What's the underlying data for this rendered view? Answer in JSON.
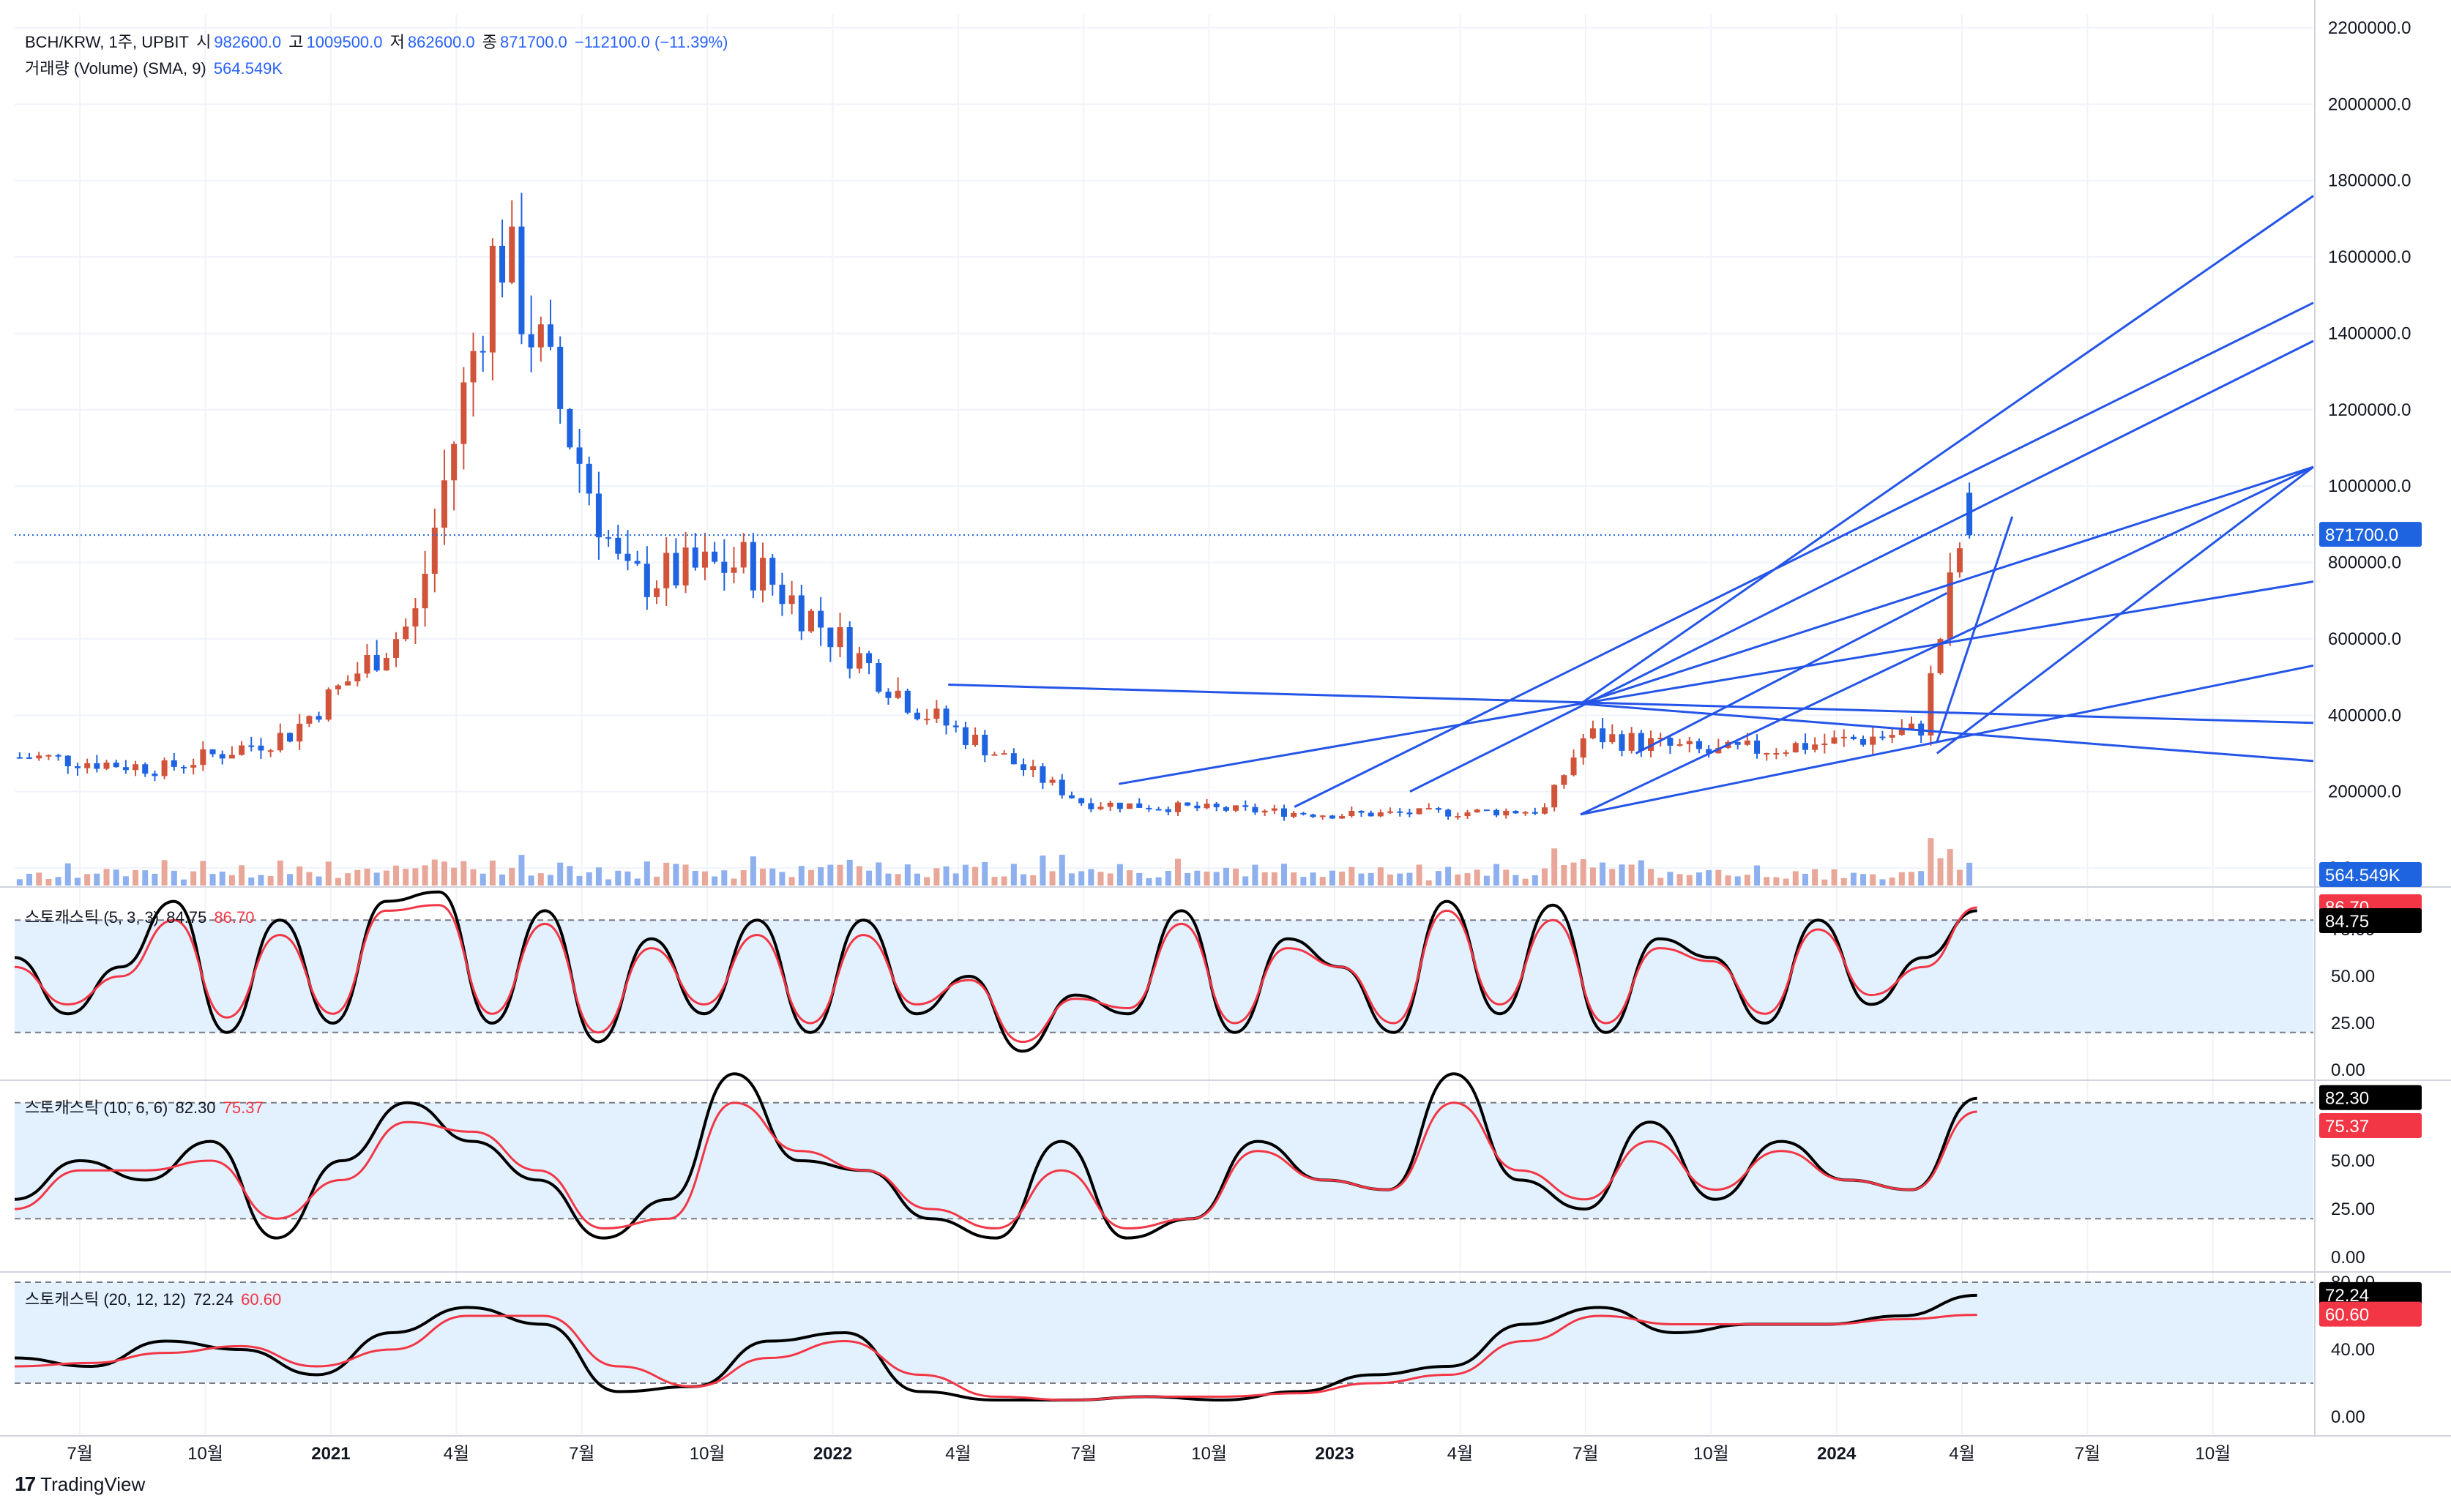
{
  "header": {
    "symbol": "BCH/KRW, 1주, UPBIT",
    "open_label": "시",
    "open": "982600.0",
    "high_label": "고",
    "high": "1009500.0",
    "low_label": "저",
    "low": "862600.0",
    "close_label": "종",
    "close": "871700.0",
    "change": "−112100.0 (−11.39%)",
    "volume_label": "거래량 (Volume) (SMA, 9)",
    "volume_value": "564.549K"
  },
  "panes": {
    "stoch1": {
      "label": "스토캐스틱 (5, 3, 3)",
      "k": "84.75",
      "d": "86.70"
    },
    "stoch2": {
      "label": "스토캐스틱 (10, 6, 6)",
      "k": "82.30",
      "d": "75.37"
    },
    "stoch3": {
      "label": "스토캐스틱 (20, 12, 12)",
      "k": "72.24",
      "d": "60.60"
    }
  },
  "price_axis": {
    "ticks": [
      "2200000.0",
      "2000000.0",
      "1800000.0",
      "1600000.0",
      "1400000.0",
      "1200000.0",
      "1000000.0",
      "800000.0",
      "600000.0",
      "400000.0",
      "200000.0",
      "0.0"
    ],
    "last_price_tag": "871700.0",
    "volume_tag": "564.549K"
  },
  "stoch_axis": {
    "pane1": [
      "75.00",
      "50.00",
      "25.00",
      "0.00"
    ],
    "pane2": [
      "50.00",
      "25.00",
      "0.00"
    ],
    "pane3": [
      "80.00",
      "40.00",
      "0.00"
    ]
  },
  "time_axis": [
    "7월",
    "10월",
    "2021",
    "4월",
    "7월",
    "10월",
    "2022",
    "4월",
    "7월",
    "10월",
    "2023",
    "4월",
    "7월",
    "10월",
    "2024",
    "4월",
    "7월",
    "10월"
  ],
  "brand": "TradingView",
  "colors": {
    "up": "#d0533a",
    "down": "#1e63e0",
    "trend": "#2455e8",
    "k_line": "#000000",
    "d_line": "#f23645",
    "band": "#e3f0fd"
  },
  "chart_data": [
    {
      "type": "candlestick",
      "title": "BCH/KRW, 1주, UPBIT",
      "x_range": [
        "2020-05",
        "2024-10"
      ],
      "ylim": [
        0,
        2200000
      ],
      "x": [
        "2020-06",
        "2020-09",
        "2020-12",
        "2021-03",
        "2021-05",
        "2021-08",
        "2021-11",
        "2022-03",
        "2022-07",
        "2022-11",
        "2023-01",
        "2023-06",
        "2023-07",
        "2023-10",
        "2024-01",
        "2024-03",
        "2024-04"
      ],
      "close": [
        290000,
        260000,
        350000,
        650000,
        1650000,
        750000,
        800000,
        420000,
        170000,
        150000,
        140000,
        150000,
        350000,
        300000,
        330000,
        360000,
        871700
      ],
      "last": {
        "open": 982600,
        "high": 1009500,
        "low": 862600,
        "close": 871700
      }
    },
    {
      "type": "bar",
      "title": "거래량 (Volume) (SMA, 9)",
      "note": "volume bars, relative",
      "last_sma": "564.549K"
    },
    {
      "type": "line",
      "title": "스토캐스틱 (5, 3, 3)",
      "ylim": [
        0,
        100
      ],
      "series": [
        {
          "name": "%K",
          "values": [
            60,
            30,
            55,
            90,
            20,
            80,
            25,
            90,
            95,
            25,
            85,
            15,
            70,
            30,
            80,
            20,
            80,
            30,
            50,
            10,
            40,
            30,
            85,
            20,
            70,
            55,
            20,
            90,
            30,
            88,
            20,
            70,
            60,
            25,
            80,
            35,
            60,
            85
          ]
        },
        {
          "name": "%D",
          "values": [
            55,
            35,
            50,
            80,
            28,
            72,
            30,
            85,
            88,
            30,
            78,
            20,
            65,
            35,
            72,
            25,
            72,
            35,
            48,
            15,
            38,
            33,
            78,
            25,
            65,
            55,
            25,
            85,
            35,
            80,
            25,
            65,
            58,
            30,
            75,
            40,
            55,
            86.7
          ]
        }
      ]
    },
    {
      "type": "line",
      "title": "스토캐스틱 (10, 6, 6)",
      "ylim": [
        0,
        100
      ],
      "series": [
        {
          "name": "%K",
          "values": [
            30,
            50,
            40,
            60,
            10,
            50,
            80,
            60,
            40,
            10,
            30,
            95,
            50,
            45,
            20,
            10,
            60,
            10,
            20,
            60,
            40,
            35,
            95,
            40,
            25,
            70,
            30,
            60,
            40,
            35,
            82.3
          ]
        },
        {
          "name": "%D",
          "values": [
            25,
            45,
            45,
            50,
            20,
            40,
            70,
            65,
            45,
            15,
            20,
            80,
            55,
            45,
            25,
            15,
            45,
            15,
            20,
            55,
            40,
            35,
            80,
            45,
            30,
            60,
            35,
            55,
            40,
            35,
            75.37
          ]
        }
      ]
    },
    {
      "type": "line",
      "title": "스토캐스틱 (20, 12, 12)",
      "ylim": [
        0,
        100
      ],
      "series": [
        {
          "name": "%K",
          "values": [
            35,
            30,
            45,
            40,
            25,
            50,
            65,
            55,
            15,
            18,
            45,
            50,
            15,
            10,
            10,
            12,
            10,
            15,
            25,
            30,
            55,
            65,
            50,
            55,
            55,
            60,
            72.24
          ]
        },
        {
          "name": "%D",
          "values": [
            30,
            32,
            38,
            42,
            30,
            40,
            60,
            60,
            30,
            18,
            35,
            45,
            25,
            12,
            10,
            12,
            12,
            14,
            20,
            25,
            45,
            60,
            55,
            55,
            55,
            58,
            60.6
          ]
        }
      ]
    }
  ]
}
